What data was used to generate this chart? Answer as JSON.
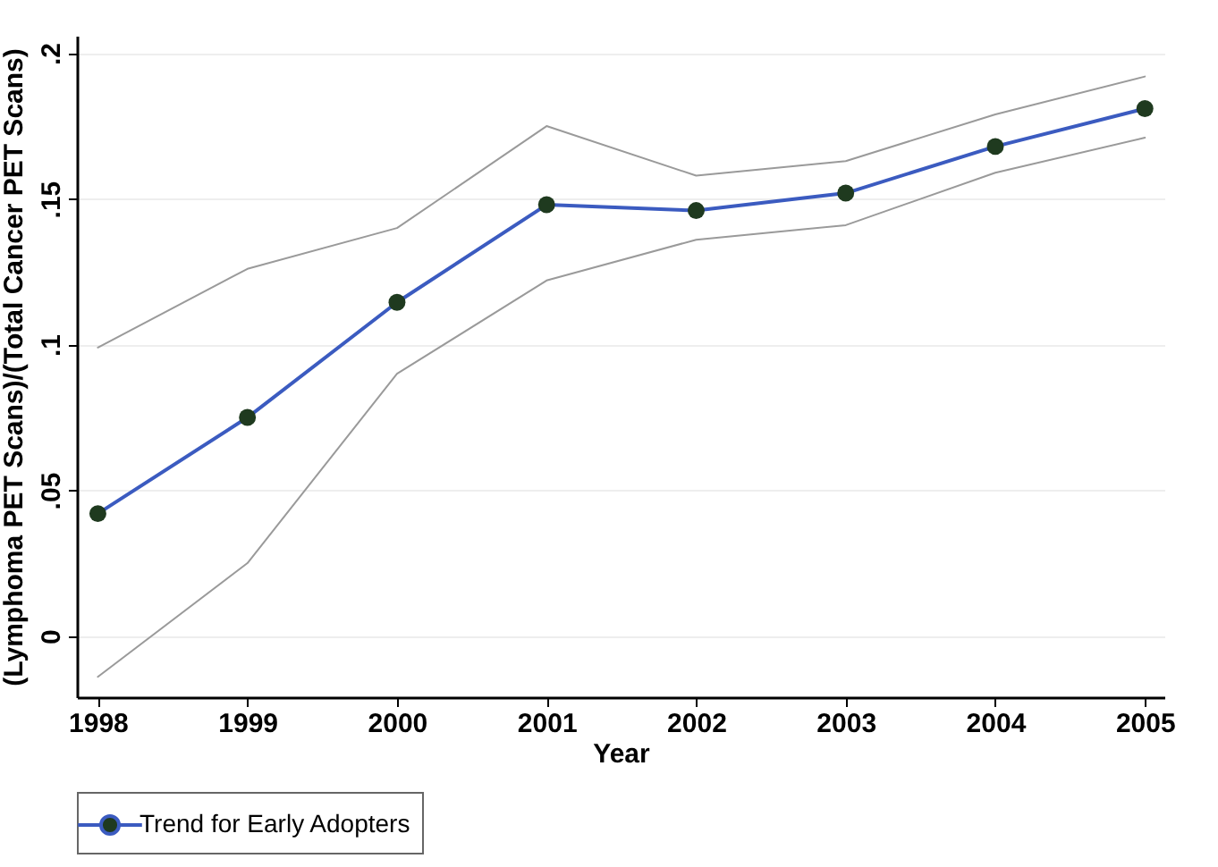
{
  "chart_data": {
    "type": "line",
    "xlabel": "Year",
    "ylabel": "(Lymphoma PET Scans)/(Total Cancer PET Scans)",
    "x": [
      1998,
      1999,
      2000,
      2001,
      2002,
      2003,
      2004,
      2005
    ],
    "series": [
      {
        "name": "Trend for Early Adopters",
        "color": "#3b5bc0",
        "values": [
          0.042,
          0.075,
          0.1145,
          0.148,
          0.146,
          0.152,
          0.168,
          0.181
        ]
      },
      {
        "color": "#9a9a9a",
        "marker": "none",
        "values": [
          0.099,
          0.126,
          0.14,
          0.175,
          0.158,
          0.163,
          0.179,
          0.192
        ]
      },
      {
        "color": "#9a9a9a",
        "marker": "none",
        "values": [
          -0.014,
          0.025,
          0.09,
          0.122,
          0.136,
          0.141,
          0.159,
          0.171
        ]
      }
    ],
    "xlim": [
      1997.86,
      2005.13
    ],
    "xticks": [
      1998,
      1999,
      2000,
      2001,
      2002,
      2003,
      2004,
      2005
    ],
    "ylim": [
      -0.021,
      0.206
    ],
    "yticks": [
      {
        "value": 0,
        "label": "0"
      },
      {
        "value": 0.05,
        "label": ".05"
      },
      {
        "value": 0.1,
        "label": ".1"
      },
      {
        "value": 0.15,
        "label": ".15"
      },
      {
        "value": 0.2,
        "label": ".2"
      }
    ],
    "grid": "y",
    "legend": "bottom",
    "marker": "circle",
    "line_style": "solid"
  }
}
